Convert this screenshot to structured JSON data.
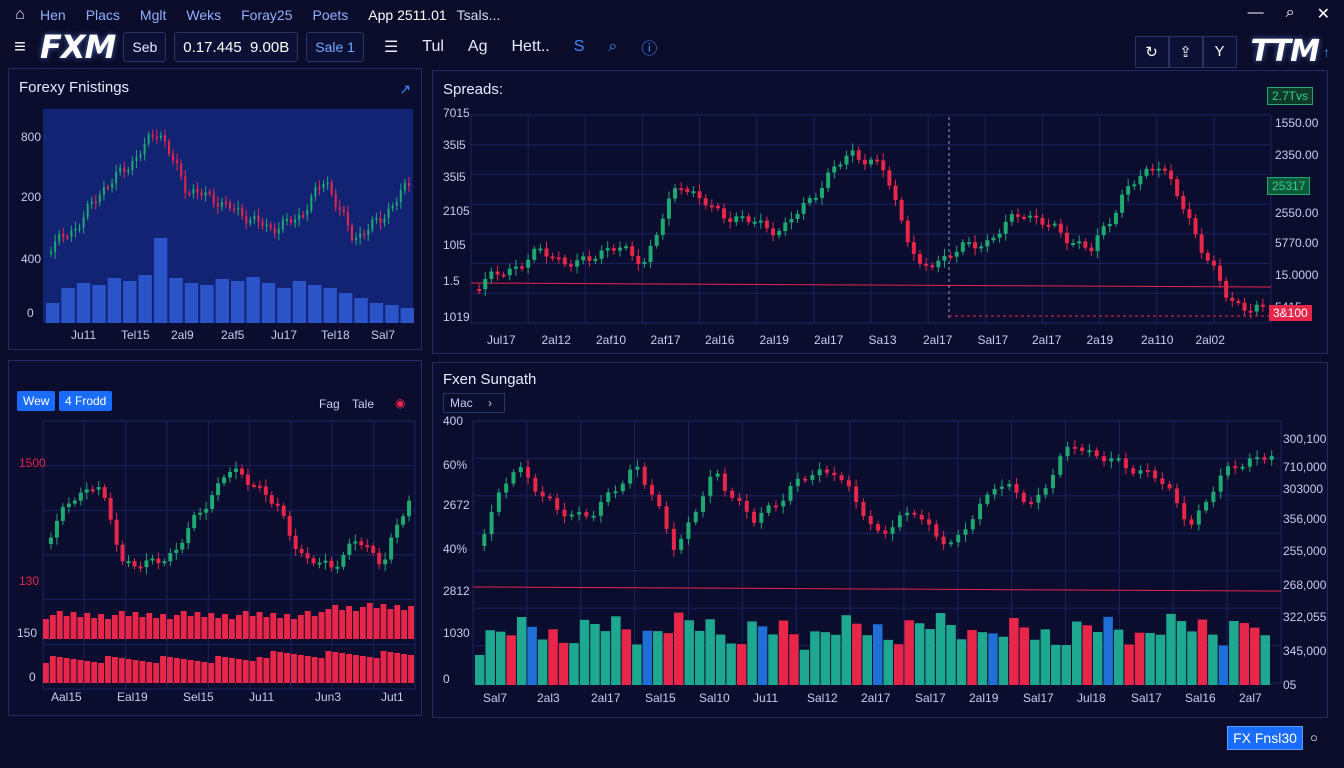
{
  "menu": {
    "items": [
      "Hen",
      "Placs",
      "Mglt",
      "Weks",
      "Foray25",
      "Poets"
    ],
    "title": "App 2511.01",
    "title2": "Tsals..."
  },
  "toolbar": {
    "symbol": "Seb",
    "price": "0.17.445",
    "volume": "9.00B",
    "select": "Sale 1",
    "items": [
      "Tul",
      "Ag",
      "Hett.."
    ],
    "logo": "FXM",
    "logo2": "TTM"
  },
  "colors": {
    "up": "#1fa870",
    "down": "#e8264a",
    "grid": "#1a2260",
    "accent": "#1a6cff"
  },
  "panel1": {
    "title": "Forexy Fnistings",
    "y_labels": [
      "800",
      "200",
      "400",
      "0"
    ],
    "x_labels": [
      "Ju11",
      "Tel15",
      "2al9",
      "2af5",
      "Ju17",
      "Tel18",
      "Sal7"
    ]
  },
  "panel2": {
    "title": "Spreads:",
    "badge_top": "2.7Tvs",
    "badge_mid": "25317",
    "badge_bot": "3&100",
    "y_left": [
      "7015",
      "35l5",
      "35l5",
      "2105",
      "10l5",
      "1.5",
      "1019"
    ],
    "y_right": [
      "1550.00",
      "2350.00",
      "",
      "2550.00",
      "5770.00",
      "15.0000",
      "5415"
    ],
    "x_labels": [
      "Jul17",
      "2al12",
      "2af10",
      "2af17",
      "2al16",
      "2al19",
      "2al17",
      "Sa13",
      "2al17",
      "Sal17",
      "2al17",
      "2a19",
      "2a110",
      "2al02"
    ]
  },
  "panel3": {
    "btn1": "Wew",
    "btn2": "4 Frodd",
    "link1": "Fag",
    "link2": "Tale",
    "y_labels": [
      "1500",
      "130",
      "150",
      "0"
    ],
    "x_labels": [
      "Aal15",
      "Eal19",
      "Sel15",
      "Ju11",
      "Jun3",
      "Jut1"
    ]
  },
  "panel4": {
    "title": "Fxen Sungath",
    "dropdown": "Mac",
    "y_left": [
      "400",
      "60%",
      "2672",
      "40%",
      "2812",
      "1030",
      "0"
    ],
    "y_right": [
      "300,100",
      "710,000",
      "303000",
      "356,000",
      "255,000",
      "268,000",
      "322,055",
      "345,000",
      "05"
    ],
    "x_labels": [
      "Sal7",
      "2al3",
      "2al17",
      "Sal15",
      "Sal10",
      "Ju11",
      "Sal12",
      "2al17",
      "Sal17",
      "2al19",
      "Sal17",
      "Jul18",
      "Sal17",
      "Sal16",
      "2al7"
    ]
  },
  "footer": {
    "button": "FX Fnsl30"
  }
}
